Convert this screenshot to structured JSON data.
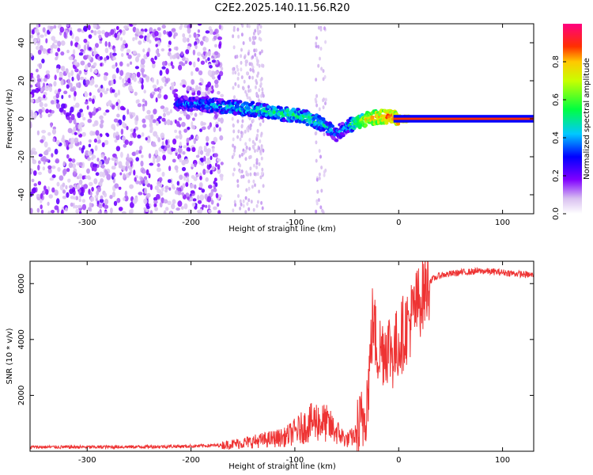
{
  "figure": {
    "title": "C2E2.2025.140.11.56.R20"
  },
  "chart_data": [
    {
      "type": "heatmap",
      "name": "spectrogram",
      "xlabel": "Height of straight line (km)",
      "ylabel": "Frequency (Hz)",
      "xlim": [
        -355,
        130
      ],
      "ylim": [
        -50,
        50
      ],
      "xticks": [
        -300,
        -200,
        -100,
        0,
        100
      ],
      "yticks": [
        -40,
        -20,
        0,
        20,
        40
      ],
      "colorbar": {
        "label": "Normalized spectral amplitude",
        "range": [
          0,
          1
        ],
        "ticks": [
          0.0,
          0.2,
          0.4,
          0.6,
          0.8
        ]
      },
      "carrier_track": {
        "height_km": [
          -215,
          -200,
          -180,
          -160,
          -140,
          -120,
          -100,
          -85,
          -70,
          -60,
          -50,
          -40,
          -30,
          -20,
          -10,
          0,
          10,
          50,
          100,
          130
        ],
        "frequency_hz": [
          8,
          8,
          7,
          6,
          5,
          3,
          2,
          0,
          -4,
          -8,
          -4,
          -2,
          0,
          1,
          1,
          0,
          0,
          0,
          0,
          0
        ],
        "amplitude": [
          0.3,
          0.35,
          0.4,
          0.45,
          0.45,
          0.5,
          0.5,
          0.5,
          0.45,
          0.35,
          0.4,
          0.6,
          0.75,
          0.8,
          0.85,
          0.9,
          0.95,
          0.95,
          0.95,
          0.95
        ]
      },
      "noise_region_km": [
        -355,
        -170
      ]
    },
    {
      "type": "line",
      "name": "snr",
      "xlabel": "Height of straight line (km)",
      "ylabel": "SNR (10 * v/v)",
      "xlim": [
        -355,
        130
      ],
      "ylim": [
        0,
        6800
      ],
      "xticks": [
        -300,
        -200,
        -100,
        0,
        100
      ],
      "yticks": [
        2000,
        4000,
        6000
      ],
      "color": "#ee3333",
      "x": [
        -355,
        -300,
        -250,
        -200,
        -170,
        -150,
        -130,
        -110,
        -100,
        -90,
        -80,
        -70,
        -60,
        -50,
        -40,
        -35,
        -30,
        -27,
        -25,
        -22,
        -20,
        -15,
        -10,
        -5,
        0,
        5,
        10,
        15,
        20,
        25,
        30,
        40,
        60,
        80,
        100,
        130
      ],
      "y": [
        150,
        150,
        160,
        180,
        220,
        300,
        400,
        500,
        700,
        900,
        1100,
        1000,
        700,
        400,
        600,
        1000,
        2000,
        3500,
        4800,
        4000,
        3600,
        3700,
        3800,
        3500,
        3900,
        4300,
        4600,
        5000,
        5400,
        5800,
        6100,
        6300,
        6400,
        6450,
        6400,
        6300
      ]
    }
  ]
}
